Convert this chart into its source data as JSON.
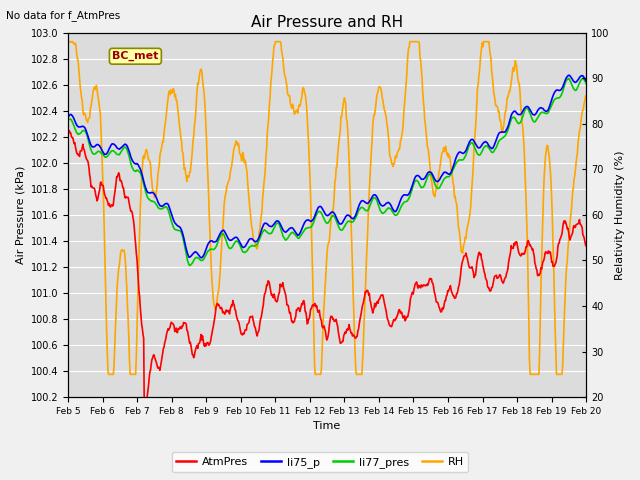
{
  "title": "Air Pressure and RH",
  "subtitle": "No data for f_AtmPres",
  "xlabel": "Time",
  "ylabel_left": "Air Pressure (kPa)",
  "ylabel_right": "Relativity Humidity (%)",
  "annotation": "BC_met",
  "ylim_left": [
    100.2,
    103.0
  ],
  "ylim_right": [
    20,
    100
  ],
  "yticks_left": [
    100.2,
    100.4,
    100.6,
    100.8,
    101.0,
    101.2,
    101.4,
    101.6,
    101.8,
    102.0,
    102.2,
    102.4,
    102.6,
    102.8,
    103.0
  ],
  "yticks_right": [
    20,
    30,
    40,
    50,
    60,
    70,
    80,
    90,
    100
  ],
  "xtick_labels": [
    "Feb 5",
    "Feb 6",
    "Feb 7",
    "Feb 8",
    "Feb 9",
    "Feb 10",
    "Feb 11",
    "Feb 12",
    "Feb 13",
    "Feb 14",
    "Feb 15",
    "Feb 16",
    "Feb 17",
    "Feb 18",
    "Feb 19",
    "Feb 20"
  ],
  "legend_labels": [
    "AtmPres",
    "li75_p",
    "li77_pres",
    "RH"
  ],
  "line_colors": [
    "#ff0000",
    "#0000ff",
    "#00cc00",
    "#ffa500"
  ],
  "bg_color": "#dcdcdc",
  "grid_color": "#ffffff",
  "fig_bg": "#f0f0f0"
}
